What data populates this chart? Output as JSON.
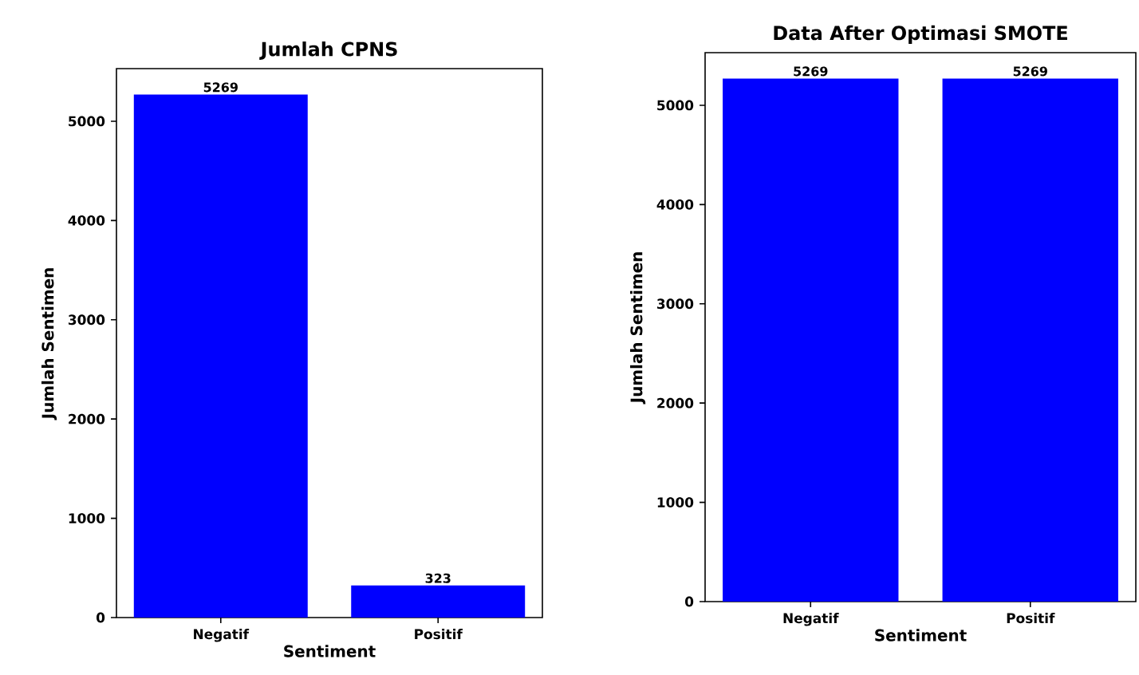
{
  "chart_data": [
    {
      "type": "bar",
      "title": "Jumlah CPNS",
      "xlabel": "Sentiment",
      "ylabel": "Jumlah Sentimen",
      "categories": [
        "Negatif",
        "Positif"
      ],
      "values": [
        5269,
        323
      ],
      "color": "#0000ff",
      "ylim": [
        0,
        5530
      ],
      "yticks": [
        0,
        1000,
        2000,
        3000,
        4000,
        5000
      ],
      "data_labels": true
    },
    {
      "type": "bar",
      "title": "Data After Optimasi SMOTE",
      "xlabel": "Sentiment",
      "ylabel": "Jumlah Sentimen",
      "categories": [
        "Negatif",
        "Positif"
      ],
      "values": [
        5269,
        5269
      ],
      "color": "#0000ff",
      "ylim": [
        0,
        5530
      ],
      "yticks": [
        0,
        1000,
        2000,
        3000,
        4000,
        5000
      ],
      "data_labels": true
    }
  ]
}
